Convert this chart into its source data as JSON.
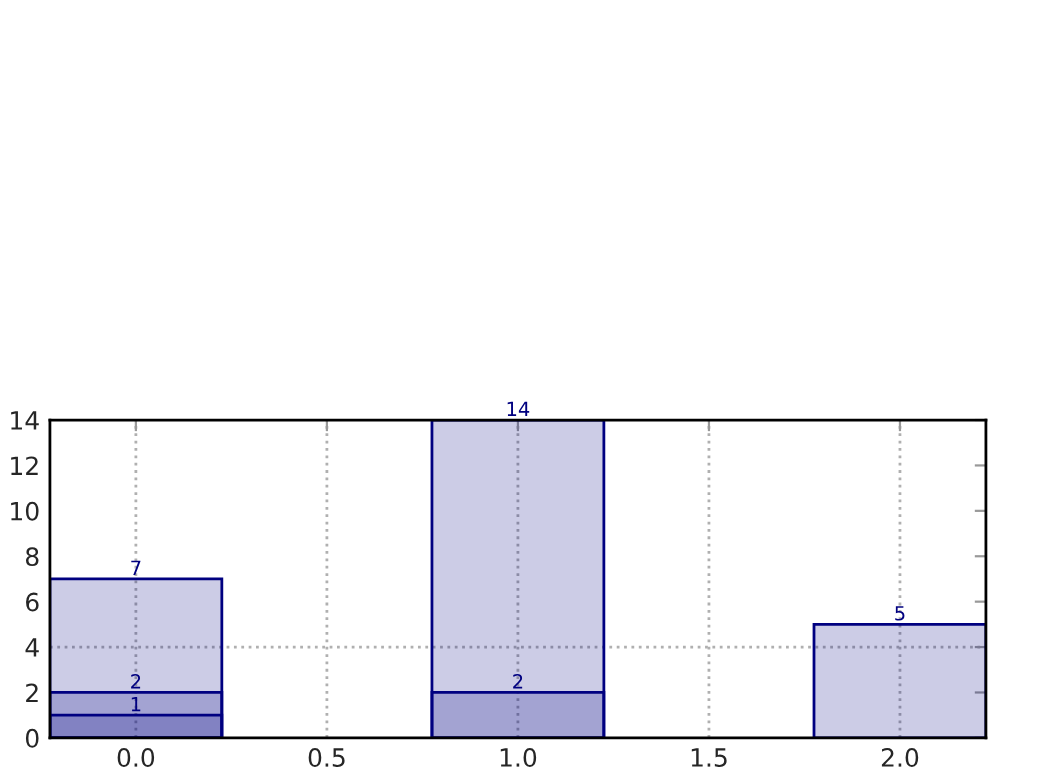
{
  "chart_data": {
    "type": "bar",
    "x": [
      0,
      1,
      2
    ],
    "series": [
      {
        "color": "#000080",
        "values": [
          7,
          14,
          5
        ]
      },
      {
        "color": "#000080",
        "values": [
          2,
          2,
          null
        ]
      },
      {
        "color": "#000080",
        "values": [
          1,
          null,
          null
        ]
      }
    ],
    "xlim": [
      -0.225,
      2.225
    ],
    "xticks": [
      {
        "value": 0,
        "label": "0.0"
      },
      {
        "value": 0.5,
        "label": "0.5"
      },
      {
        "value": 1,
        "label": "1.0"
      },
      {
        "value": 1.5,
        "label": "1.5"
      },
      {
        "value": 2,
        "label": "2.0"
      }
    ],
    "ylim": [
      0,
      14
    ],
    "yticks": [
      0,
      2,
      4,
      6,
      8,
      10,
      12,
      14
    ],
    "grid": "x",
    "data_labels": true,
    "ref_lines": [
      {
        "axis": "y",
        "value": 4,
        "color": "#b0b0b0",
        "line_style": "dotted"
      }
    ]
  }
}
